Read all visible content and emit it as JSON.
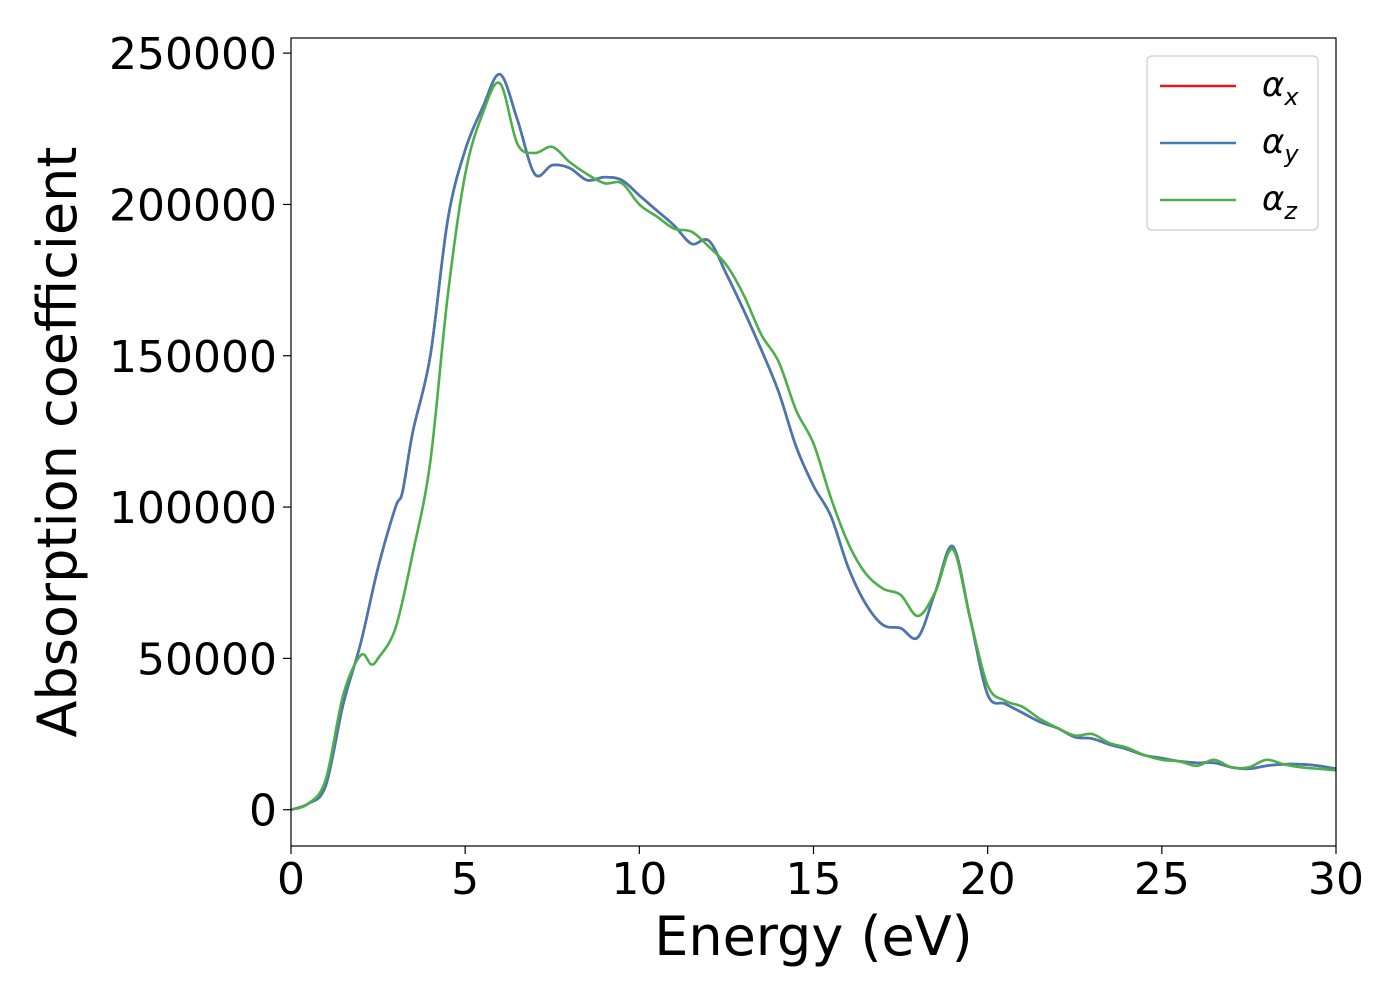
{
  "chart_data": {
    "type": "line",
    "xlabel": "Energy (eV)",
    "ylabel": "Absorption coefficient",
    "xlim": [
      0,
      30
    ],
    "ylim": [
      -12000,
      255000
    ],
    "xticks": [
      0,
      5,
      10,
      15,
      20,
      25,
      30
    ],
    "xtick_labels": [
      "0",
      "5",
      "10",
      "15",
      "20",
      "25",
      "30"
    ],
    "yticks": [
      0,
      50000,
      100000,
      150000,
      200000,
      250000
    ],
    "ytick_labels": [
      "0",
      "50000",
      "100000",
      "150000",
      "200000",
      "250000"
    ],
    "grid": false,
    "legend_position": "top-right",
    "series": [
      {
        "name": "αx",
        "base": "α",
        "sub": "x",
        "color": "#e41a1c",
        "x": [
          0,
          0.5,
          1,
          1.5,
          2,
          2.5,
          3,
          3.2,
          3.5,
          4,
          4.5,
          5,
          5.5,
          6,
          6.5,
          7,
          7.5,
          8,
          8.5,
          9,
          9.5,
          10,
          10.5,
          11,
          11.5,
          12,
          12.5,
          13,
          13.5,
          14,
          14.5,
          15,
          15.5,
          16,
          16.5,
          17,
          17.5,
          18,
          18.5,
          19,
          19.5,
          20,
          20.5,
          21,
          21.5,
          22,
          22.5,
          23,
          23.5,
          24,
          24.5,
          25,
          25.5,
          26,
          26.5,
          27,
          27.5,
          28,
          28.5,
          29,
          29.5,
          30
        ],
        "y": [
          0,
          2000,
          8000,
          35000,
          55000,
          80000,
          100000,
          105000,
          125000,
          150000,
          195000,
          218000,
          232000,
          243000,
          228000,
          210000,
          213000,
          212000,
          208000,
          209000,
          208000,
          203000,
          198000,
          193000,
          187000,
          188000,
          177000,
          165000,
          152000,
          138000,
          120000,
          107000,
          97000,
          80000,
          68000,
          61000,
          60000,
          57000,
          72000,
          87000,
          63000,
          38000,
          35000,
          32000,
          29000,
          27000,
          24000,
          23500,
          21500,
          20000,
          18000,
          17000,
          16000,
          15500,
          15500,
          14000,
          13500,
          14500,
          15000,
          15000,
          14500,
          13500
        ]
      },
      {
        "name": "αy",
        "base": "α",
        "sub": "y",
        "color": "#4678b2",
        "x": [
          0,
          0.5,
          1,
          1.5,
          2,
          2.5,
          3,
          3.2,
          3.5,
          4,
          4.5,
          5,
          5.5,
          6,
          6.5,
          7,
          7.5,
          8,
          8.5,
          9,
          9.5,
          10,
          10.5,
          11,
          11.5,
          12,
          12.5,
          13,
          13.5,
          14,
          14.5,
          15,
          15.5,
          16,
          16.5,
          17,
          17.5,
          18,
          18.5,
          19,
          19.5,
          20,
          20.5,
          21,
          21.5,
          22,
          22.5,
          23,
          23.5,
          24,
          24.5,
          25,
          25.5,
          26,
          26.5,
          27,
          27.5,
          28,
          28.5,
          29,
          29.5,
          30
        ],
        "y": [
          0,
          2000,
          8000,
          35000,
          55000,
          80000,
          100000,
          105000,
          125000,
          150000,
          195000,
          218000,
          232000,
          243000,
          228000,
          210000,
          213000,
          212000,
          208000,
          209000,
          208000,
          203000,
          198000,
          193000,
          187000,
          188000,
          177000,
          165000,
          152000,
          138000,
          120000,
          107000,
          97000,
          80000,
          68000,
          61000,
          60000,
          57000,
          72000,
          87000,
          63000,
          38000,
          35000,
          32000,
          29000,
          27000,
          24000,
          23500,
          21500,
          20000,
          18000,
          17000,
          16000,
          15500,
          15500,
          14000,
          13500,
          14500,
          15000,
          15000,
          14500,
          13500
        ]
      },
      {
        "name": "αz",
        "base": "α",
        "sub": "z",
        "color": "#4daf4a",
        "x": [
          0,
          0.5,
          1,
          1.5,
          2,
          2.3,
          2.5,
          3,
          3.5,
          4,
          4.5,
          5,
          5.5,
          6,
          6.5,
          7,
          7.5,
          8,
          8.5,
          9,
          9.5,
          10,
          10.5,
          11,
          11.5,
          12,
          12.5,
          13,
          13.5,
          14,
          14.5,
          15,
          15.5,
          16,
          16.5,
          17,
          17.5,
          18,
          18.5,
          19,
          19.5,
          20,
          20.5,
          21,
          21.5,
          22,
          22.5,
          23,
          23.5,
          24,
          24.5,
          25,
          25.5,
          26,
          26.5,
          27,
          27.5,
          28,
          28.5,
          29,
          29.5,
          30
        ],
        "y": [
          0,
          2000,
          10000,
          38000,
          51000,
          48000,
          50000,
          60000,
          85000,
          115000,
          170000,
          210000,
          230000,
          240000,
          220000,
          217000,
          219000,
          214000,
          210000,
          207000,
          207000,
          200000,
          196000,
          192000,
          191000,
          186000,
          180000,
          170000,
          157000,
          148000,
          132000,
          121000,
          103000,
          88000,
          78000,
          73000,
          71000,
          64000,
          72000,
          86000,
          63000,
          41000,
          36000,
          34000,
          30000,
          27000,
          24500,
          25000,
          22000,
          20500,
          18000,
          16500,
          16000,
          14500,
          16500,
          14000,
          14000,
          16500,
          15000,
          14000,
          13500,
          13000
        ]
      }
    ]
  }
}
